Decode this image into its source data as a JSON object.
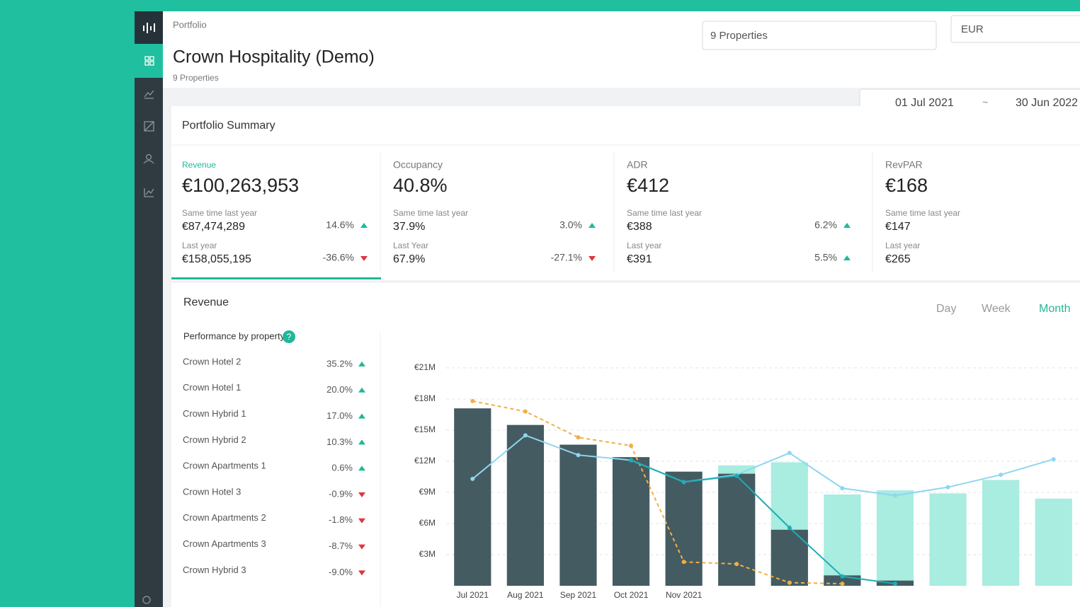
{
  "header": {
    "breadcrumb": "Portfolio",
    "title": "Crown Hospitality (Demo)",
    "subtitle": "9 Properties",
    "property_select": "9 Properties",
    "currency": "EUR",
    "date_from": "01 Jul 2021",
    "date_separator": "~",
    "date_to": "30 Jun 2022"
  },
  "summary": {
    "title": "Portfolio Summary",
    "active": 0,
    "kpis": [
      {
        "label": "Revenue",
        "value": "€100,263,953",
        "rows": [
          {
            "label": "Same time last year",
            "value": "€87,474,289",
            "change": "14.6%",
            "direction": "up"
          },
          {
            "label": "Last year",
            "value": "€158,055,195",
            "change": "-36.6%",
            "direction": "down"
          }
        ]
      },
      {
        "label": "Occupancy",
        "value": "40.8%",
        "rows": [
          {
            "label": "Same time last year",
            "value": "37.9%",
            "change": "3.0%",
            "direction": "up"
          },
          {
            "label": "Last Year",
            "value": "67.9%",
            "change": "-27.1%",
            "direction": "down"
          }
        ]
      },
      {
        "label": "ADR",
        "value": "€412",
        "rows": [
          {
            "label": "Same time last year",
            "value": "€388",
            "change": "6.2%",
            "direction": "up"
          },
          {
            "label": "Last year",
            "value": "€391",
            "change": "5.5%",
            "direction": "up"
          }
        ]
      },
      {
        "label": "RevPAR",
        "value": "€168",
        "rows": [
          {
            "label": "Same time last year",
            "value": "€147"
          },
          {
            "label": "Last year",
            "value": "€265"
          }
        ]
      }
    ]
  },
  "revenue": {
    "title": "Revenue",
    "tabs": [
      "Day",
      "Week",
      "Month"
    ],
    "active_tab": 2,
    "performance_title": "Performance by property",
    "help": "?",
    "properties": [
      {
        "name": "Crown Hotel 2",
        "change": "35.2%",
        "direction": "up"
      },
      {
        "name": "Crown Hotel 1",
        "change": "20.0%",
        "direction": "up"
      },
      {
        "name": "Crown Hybrid 1",
        "change": "17.0%",
        "direction": "up"
      },
      {
        "name": "Crown Hybrid 2",
        "change": "10.3%",
        "direction": "up"
      },
      {
        "name": "Crown Apartments 1",
        "change": "0.6%",
        "direction": "up"
      },
      {
        "name": "Crown Hotel 3",
        "change": "-0.9%",
        "direction": "down"
      },
      {
        "name": "Crown Apartments 2",
        "change": "-1.8%",
        "direction": "down"
      },
      {
        "name": "Crown Apartments 3",
        "change": "-8.7%",
        "direction": "down"
      },
      {
        "name": "Crown Hybrid 3",
        "change": "-9.0%",
        "direction": "down"
      }
    ]
  },
  "chart_data": {
    "type": "bar-line",
    "categories": [
      "Jul 2021",
      "Aug 2021",
      "Sep 2021",
      "Oct 2021",
      "Nov 2021",
      null,
      null,
      null,
      null,
      null,
      null,
      null
    ],
    "ylim": [
      0,
      22.5
    ],
    "yticks": [
      {
        "value": 3,
        "label": "€3M"
      },
      {
        "value": 6,
        "label": "€6M"
      },
      {
        "value": 9,
        "label": "€9M"
      },
      {
        "value": 12,
        "label": "€12M"
      },
      {
        "value": 15,
        "label": "€15M"
      },
      {
        "value": 18,
        "label": "€18M"
      },
      {
        "value": 21,
        "label": "€21M"
      }
    ],
    "grid": true,
    "series": [
      {
        "kind": "bar",
        "color": "#a9ece0",
        "values": [
          null,
          null,
          null,
          null,
          null,
          11.6,
          11.9,
          8.8,
          9.2,
          8.9,
          10.2,
          8.4
        ]
      },
      {
        "kind": "bar",
        "color": "#455b62",
        "values": [
          17.1,
          15.5,
          13.6,
          12.4,
          11.0,
          10.8,
          5.4,
          1.0,
          0.5,
          null,
          null,
          null
        ]
      },
      {
        "kind": "line",
        "color": "#8fd6f0",
        "dashed": false,
        "values": [
          10.3,
          14.5,
          12.6,
          12.1,
          10.0,
          10.7,
          12.8,
          9.4,
          8.7,
          9.5,
          10.7,
          12.2
        ]
      },
      {
        "kind": "line",
        "color": "#f2ae44",
        "dashed": true,
        "values": [
          17.8,
          16.8,
          14.3,
          13.5,
          2.3,
          2.1,
          0.3,
          0.2,
          null,
          null,
          null,
          null
        ]
      },
      {
        "kind": "line",
        "color": "#1aaeb6",
        "dashed": false,
        "values": [
          null,
          null,
          null,
          12.1,
          10.0,
          10.6,
          5.6,
          0.9,
          0.2,
          null,
          null,
          null
        ]
      }
    ]
  }
}
